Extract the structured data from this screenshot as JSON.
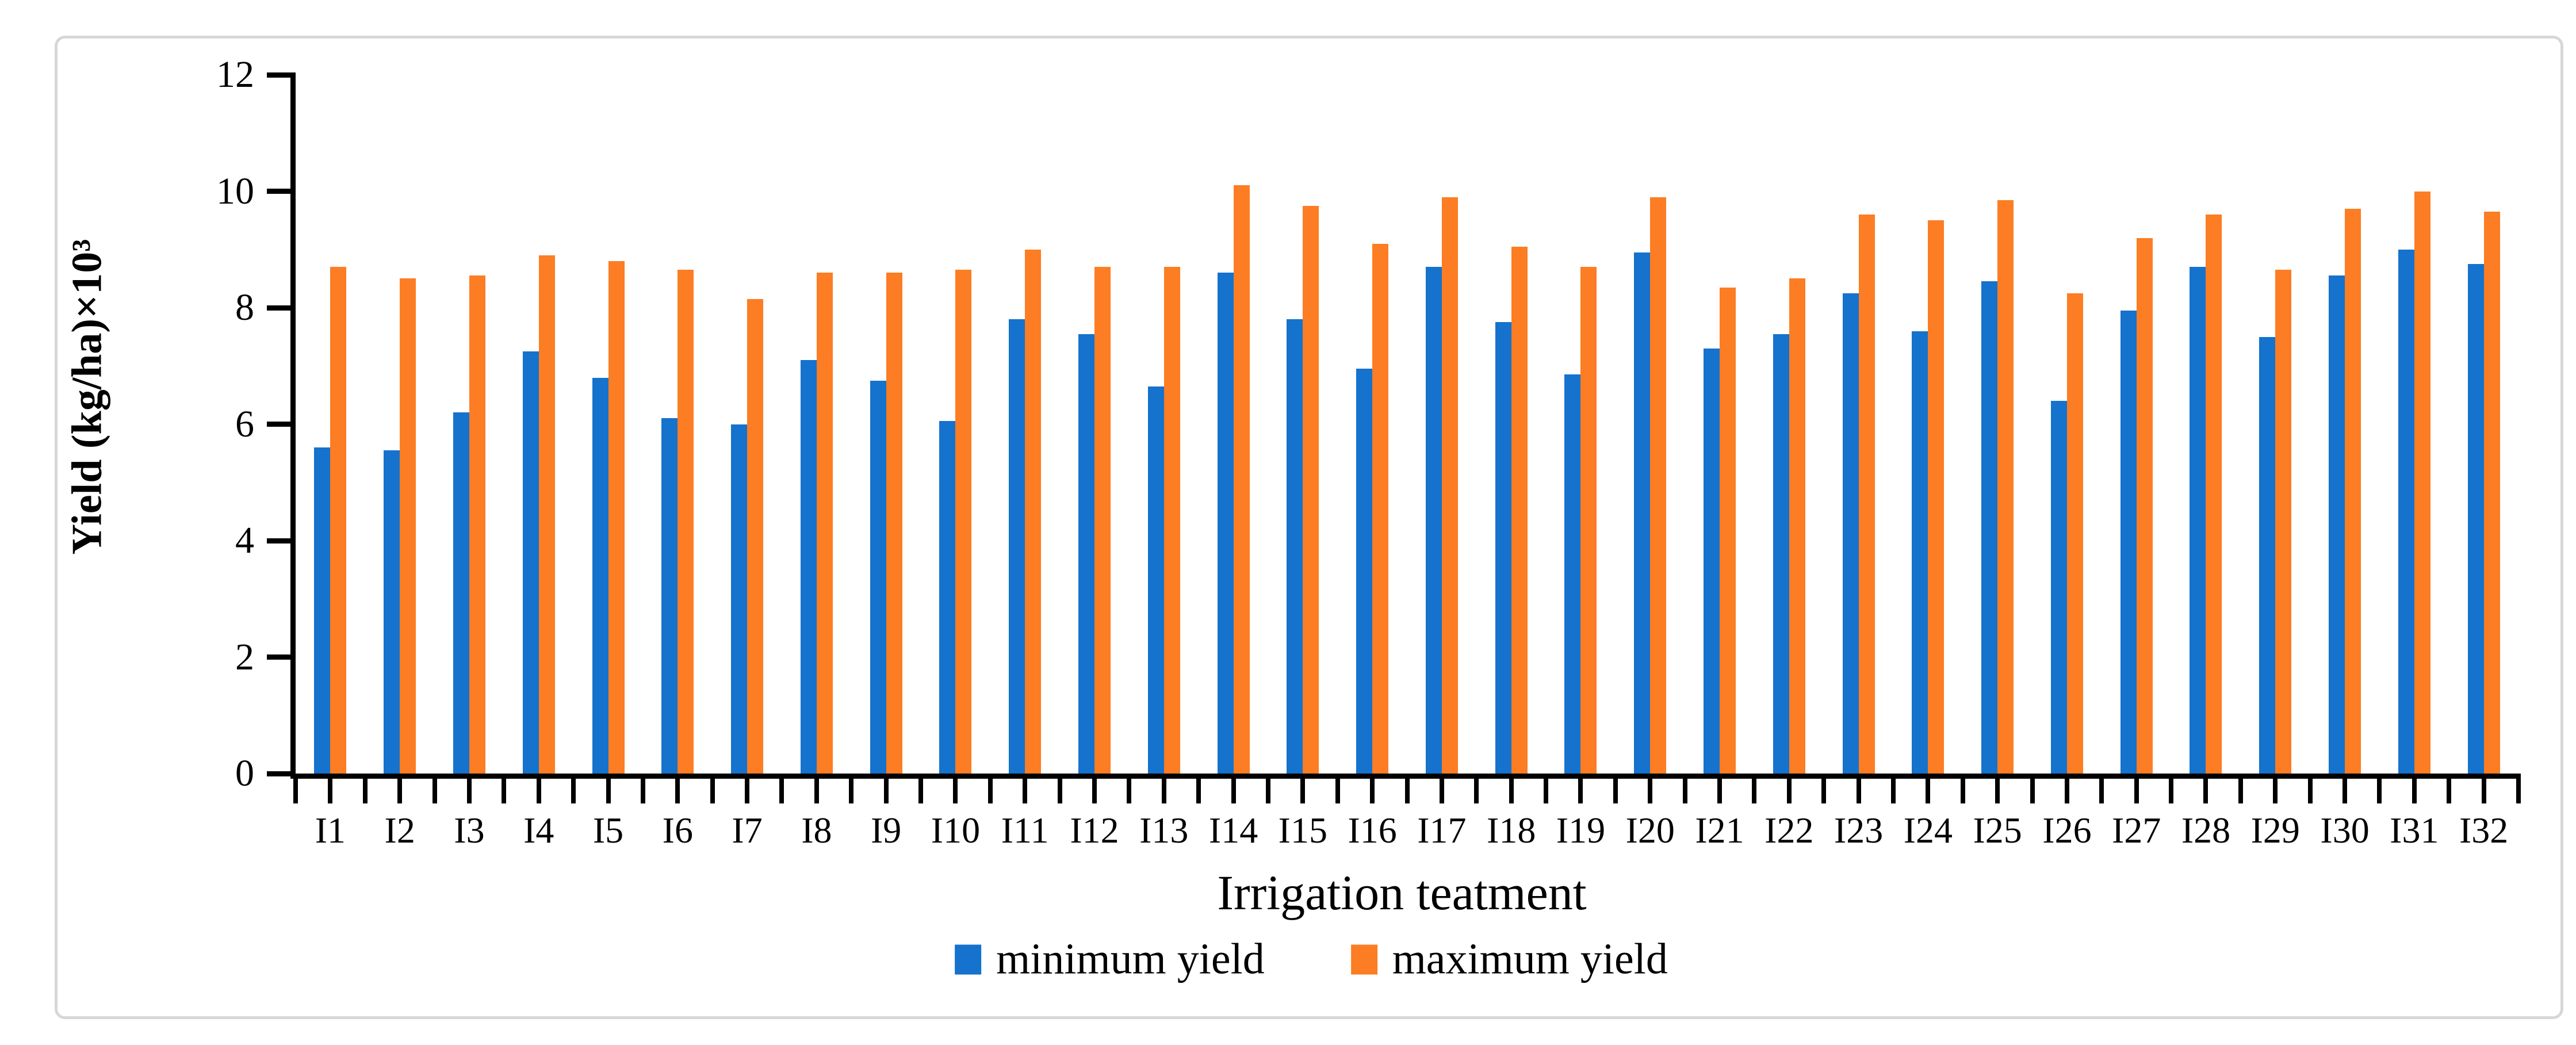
{
  "figure": {
    "frame_color": "#d7d7d7",
    "background": "#ffffff",
    "axis_color": "#000000"
  },
  "chart_data": {
    "type": "bar",
    "title": "",
    "xlabel": "Irrigation teatment",
    "ylabel": "Yield (kg/ha)×10³",
    "ylim": [
      0,
      12
    ],
    "ytick_step": 2,
    "ytick_labels": [
      "0",
      "2",
      "4",
      "6",
      "8",
      "10",
      "12"
    ],
    "grid": false,
    "legend_position": "bottom",
    "categories": [
      "I1",
      "I2",
      "I3",
      "I4",
      "I5",
      "I6",
      "I7",
      "I8",
      "I9",
      "I10",
      "I11",
      "I12",
      "I13",
      "I14",
      "I15",
      "I16",
      "I17",
      "I18",
      "I19",
      "I20",
      "I21",
      "I22",
      "I23",
      "I24",
      "I25",
      "I26",
      "I27",
      "I28",
      "I29",
      "I30",
      "I31",
      "I32"
    ],
    "series": [
      {
        "name": "minimum yield",
        "color": "#1572CD",
        "values": [
          5.6,
          5.55,
          6.2,
          7.25,
          6.8,
          6.1,
          6.0,
          7.1,
          6.75,
          6.05,
          7.8,
          7.55,
          6.65,
          8.6,
          7.8,
          6.95,
          8.7,
          7.75,
          6.85,
          8.95,
          7.3,
          7.55,
          8.25,
          7.6,
          8.45,
          6.4,
          7.95,
          8.7,
          7.5,
          8.55,
          9.0,
          8.75
        ]
      },
      {
        "name": "maximum yield",
        "color": "#FC7D23",
        "values": [
          8.7,
          8.5,
          8.55,
          8.9,
          8.8,
          8.65,
          8.15,
          8.6,
          8.6,
          8.65,
          9.0,
          8.7,
          8.7,
          10.1,
          9.75,
          9.1,
          9.9,
          9.05,
          8.7,
          9.9,
          8.35,
          8.5,
          9.6,
          9.5,
          9.85,
          8.25,
          9.2,
          9.6,
          8.65,
          9.7,
          10.0,
          9.65
        ]
      }
    ]
  }
}
